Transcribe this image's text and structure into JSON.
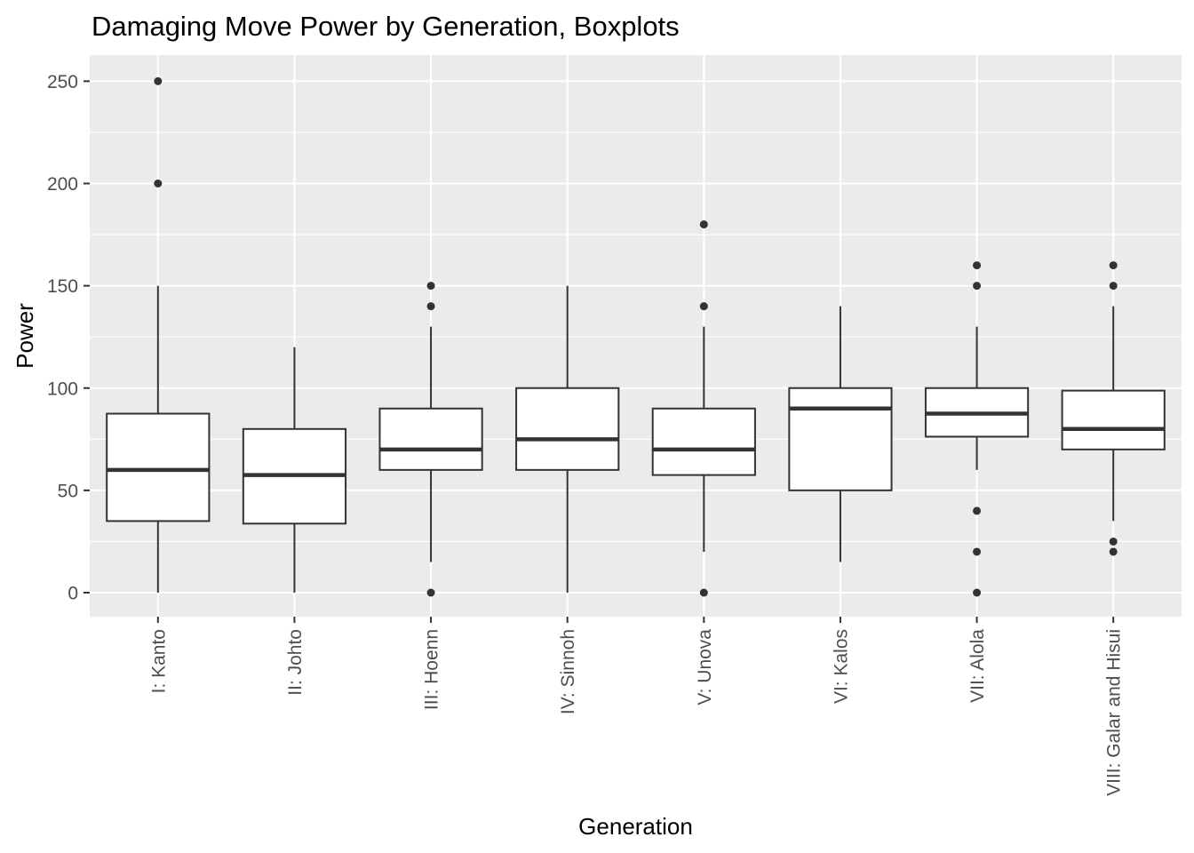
{
  "chart_data": {
    "type": "boxplot",
    "title": "Damaging Move Power by Generation, Boxplots",
    "xlabel": "Generation",
    "ylabel": "Power",
    "ylim": [
      -12,
      262
    ],
    "yticks": [
      0,
      50,
      100,
      150,
      200,
      250
    ],
    "grid": true,
    "legend": "none",
    "categories": [
      "I: Kanto",
      "II: Johto",
      "III: Hoenn",
      "IV: Sinnoh",
      "V: Unova",
      "VI: Kalos",
      "VII: Alola",
      "VIII: Galar and Hisui"
    ],
    "boxes": [
      {
        "min": 0,
        "q1": 35,
        "median": 60,
        "q3": 87.5,
        "max": 150,
        "outliers": [
          200,
          250
        ]
      },
      {
        "min": 0,
        "q1": 33.75,
        "median": 57.5,
        "q3": 80,
        "max": 120,
        "outliers": []
      },
      {
        "min": 15,
        "q1": 60,
        "median": 70,
        "q3": 90,
        "max": 130,
        "outliers": [
          0,
          140,
          150
        ]
      },
      {
        "min": 0,
        "q1": 60,
        "median": 75,
        "q3": 100,
        "max": 150,
        "outliers": []
      },
      {
        "min": 20,
        "q1": 57.5,
        "median": 70,
        "q3": 90,
        "max": 130,
        "outliers": [
          0,
          140,
          180
        ]
      },
      {
        "min": 15,
        "q1": 50,
        "median": 90,
        "q3": 100,
        "max": 140,
        "outliers": []
      },
      {
        "min": 60,
        "q1": 76.25,
        "median": 87.5,
        "q3": 100,
        "max": 130,
        "outliers": [
          0,
          20,
          40,
          150,
          160
        ]
      },
      {
        "min": 35,
        "q1": 70,
        "median": 80,
        "q3": 98.75,
        "max": 140,
        "outliers": [
          20,
          25,
          150,
          160
        ]
      }
    ],
    "colors": {
      "panel_background": "#EBEBEB",
      "grid_major": "#FFFFFF",
      "grid_minor": "#F2F2F2",
      "box_fill": "#FFFFFF",
      "box_line": "#333333",
      "outlier": "#333333",
      "tick_label": "#4D4D4D",
      "text": "#000000"
    }
  }
}
